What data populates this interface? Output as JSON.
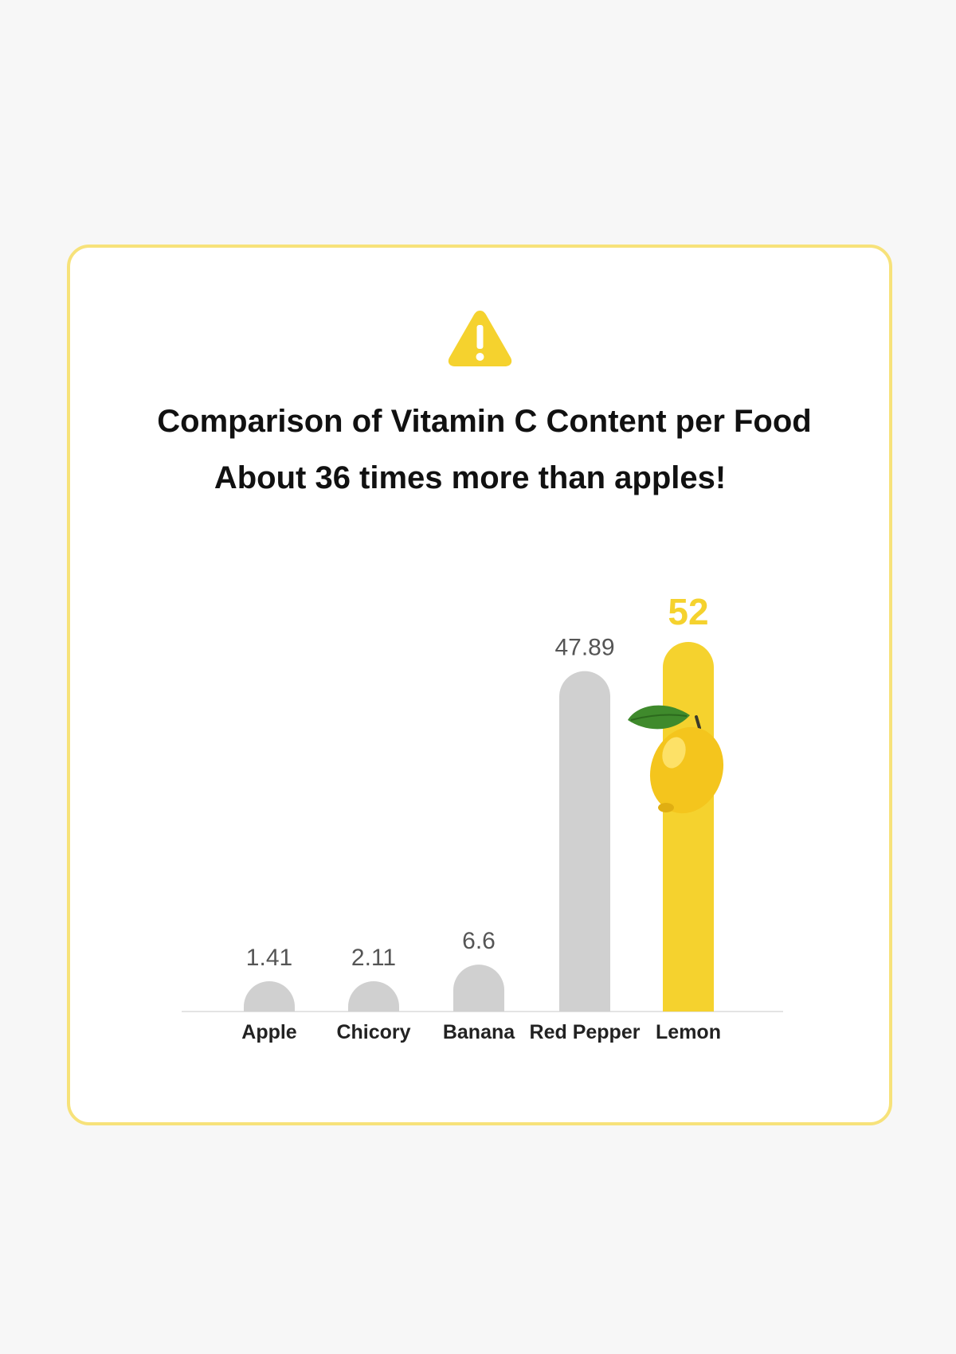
{
  "header": {
    "icon": "warning-icon",
    "title": "Comparison of Vitamin C Content per Food",
    "subtitle": "About 36 times more than apples!"
  },
  "colors": {
    "accent": "#f5d22e",
    "border": "#f7e27a",
    "bar_default": "#d0d0d0"
  },
  "chart_data": {
    "type": "bar",
    "categories": [
      "Apple",
      "Chicory",
      "Banana",
      "Red Pepper",
      "Lemon"
    ],
    "values": [
      1.41,
      2.11,
      6.6,
      47.89,
      52
    ],
    "value_labels": [
      "1.41",
      "2.11",
      "6.6",
      "47.89",
      "52"
    ],
    "highlight": "Lemon",
    "highlight_icon": "lemon-icon",
    "grid": false
  }
}
